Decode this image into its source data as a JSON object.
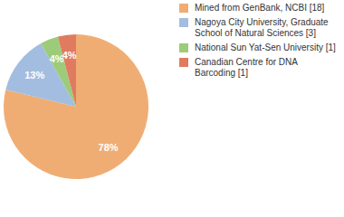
{
  "chart_data": {
    "type": "pie",
    "categories": [
      "Mined from GenBank, NCBI [18]",
      "Nagoya City University, Graduate School of Natural Sciences [3]",
      "National Sun Yat-Sen University [1]",
      "Canadian Centre for DNA Barcoding [1]"
    ],
    "values": [
      78,
      13,
      4,
      4
    ],
    "value_labels": [
      "78%",
      "13%",
      "4%",
      "4%"
    ],
    "colors": [
      "#f0ad73",
      "#a3bde0",
      "#9ccc7a",
      "#e07b5f"
    ],
    "data_labels": true,
    "legend": "upper right"
  }
}
